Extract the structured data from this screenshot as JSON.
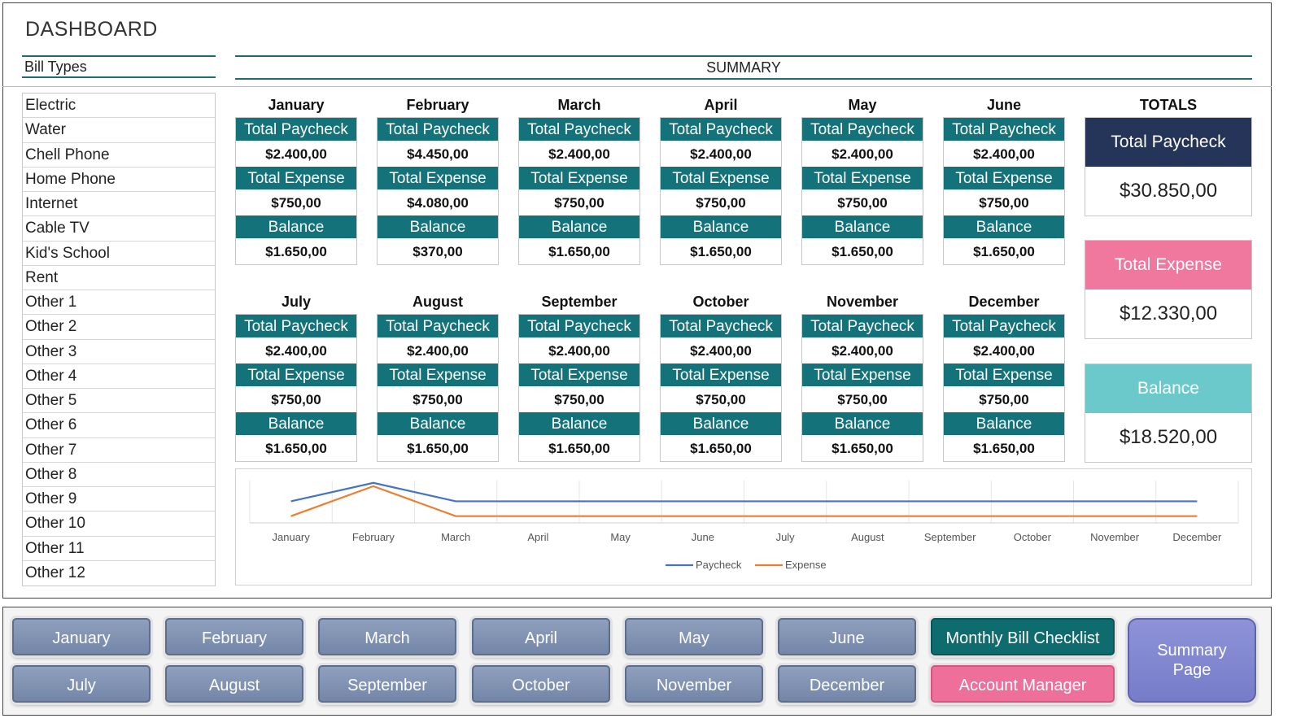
{
  "title": "DASHBOARD",
  "bill_types": {
    "header": "Bill Types",
    "items": [
      "Electric",
      "Water",
      "Chell Phone",
      "Home Phone",
      "Internet",
      "Cable TV",
      "Kid's School",
      "Rent",
      "Other 1",
      "Other 2",
      "Other 3",
      "Other 4",
      "Other 5",
      "Other 6",
      "Other 7",
      "Other 8",
      "Other 9",
      "Other 10",
      "Other 11",
      "Other 12"
    ]
  },
  "summary": {
    "header": "SUMMARY",
    "labels": {
      "paycheck": "Total Paycheck",
      "expense": "Total Expense",
      "balance": "Balance"
    },
    "months": [
      {
        "name": "January",
        "paycheck": "$2.400,00",
        "expense": "$750,00",
        "balance": "$1.650,00"
      },
      {
        "name": "February",
        "paycheck": "$4.450,00",
        "expense": "$4.080,00",
        "balance": "$370,00"
      },
      {
        "name": "March",
        "paycheck": "$2.400,00",
        "expense": "$750,00",
        "balance": "$1.650,00"
      },
      {
        "name": "April",
        "paycheck": "$2.400,00",
        "expense": "$750,00",
        "balance": "$1.650,00"
      },
      {
        "name": "May",
        "paycheck": "$2.400,00",
        "expense": "$750,00",
        "balance": "$1.650,00"
      },
      {
        "name": "June",
        "paycheck": "$2.400,00",
        "expense": "$750,00",
        "balance": "$1.650,00"
      },
      {
        "name": "July",
        "paycheck": "$2.400,00",
        "expense": "$750,00",
        "balance": "$1.650,00"
      },
      {
        "name": "August",
        "paycheck": "$2.400,00",
        "expense": "$750,00",
        "balance": "$1.650,00"
      },
      {
        "name": "September",
        "paycheck": "$2.400,00",
        "expense": "$750,00",
        "balance": "$1.650,00"
      },
      {
        "name": "October",
        "paycheck": "$2.400,00",
        "expense": "$750,00",
        "balance": "$1.650,00"
      },
      {
        "name": "November",
        "paycheck": "$2.400,00",
        "expense": "$750,00",
        "balance": "$1.650,00"
      },
      {
        "name": "December",
        "paycheck": "$2.400,00",
        "expense": "$750,00",
        "balance": "$1.650,00"
      }
    ]
  },
  "totals": {
    "header": "TOTALS",
    "paycheck": {
      "label": "Total Paycheck",
      "value": "$30.850,00",
      "color": "#243559"
    },
    "expense": {
      "label": "Total Expense",
      "value": "$12.330,00",
      "color": "#f0779d"
    },
    "balance": {
      "label": "Balance",
      "value": "$18.520,00",
      "color": "#6cc9cb"
    }
  },
  "chart_data": {
    "type": "line",
    "categories": [
      "January",
      "February",
      "March",
      "April",
      "May",
      "June",
      "July",
      "August",
      "September",
      "October",
      "November",
      "December"
    ],
    "series": [
      {
        "name": "Paycheck",
        "color": "#4472c4",
        "values": [
          2400,
          4450,
          2400,
          2400,
          2400,
          2400,
          2400,
          2400,
          2400,
          2400,
          2400,
          2400
        ]
      },
      {
        "name": "Expense",
        "color": "#ed7d31",
        "values": [
          750,
          4080,
          750,
          750,
          750,
          750,
          750,
          750,
          750,
          750,
          750,
          750
        ]
      }
    ],
    "ylim": [
      0,
      4700
    ],
    "legend": "bottom",
    "grid": true
  },
  "nav": {
    "months": [
      "January",
      "February",
      "March",
      "April",
      "May",
      "June",
      "July",
      "August",
      "September",
      "October",
      "November",
      "December"
    ],
    "checklist": "Monthly Bill Checklist",
    "account": "Account Manager",
    "summary_page": "Summary Page"
  }
}
